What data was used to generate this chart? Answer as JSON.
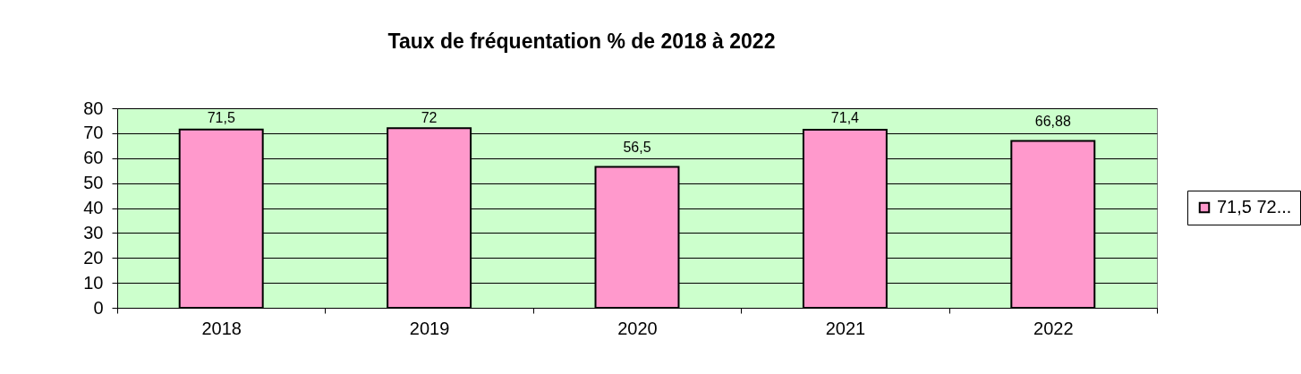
{
  "chart_data": {
    "type": "bar",
    "title": "Taux de fréquentation % de 2018 à 2022",
    "categories": [
      "2018",
      "2019",
      "2020",
      "2021",
      "2022"
    ],
    "series": [
      {
        "name": "71,5 72...",
        "color": "#ff99cc",
        "values": [
          71.5,
          72,
          56.5,
          71.4,
          66.88
        ],
        "value_labels": [
          "71,5",
          "72",
          "56,5",
          "71,4",
          "66,88"
        ]
      }
    ],
    "ylim": [
      0,
      80
    ],
    "yticks": [
      0,
      10,
      20,
      30,
      40,
      50,
      60,
      70,
      80
    ],
    "grid": "y",
    "legend": "right"
  }
}
